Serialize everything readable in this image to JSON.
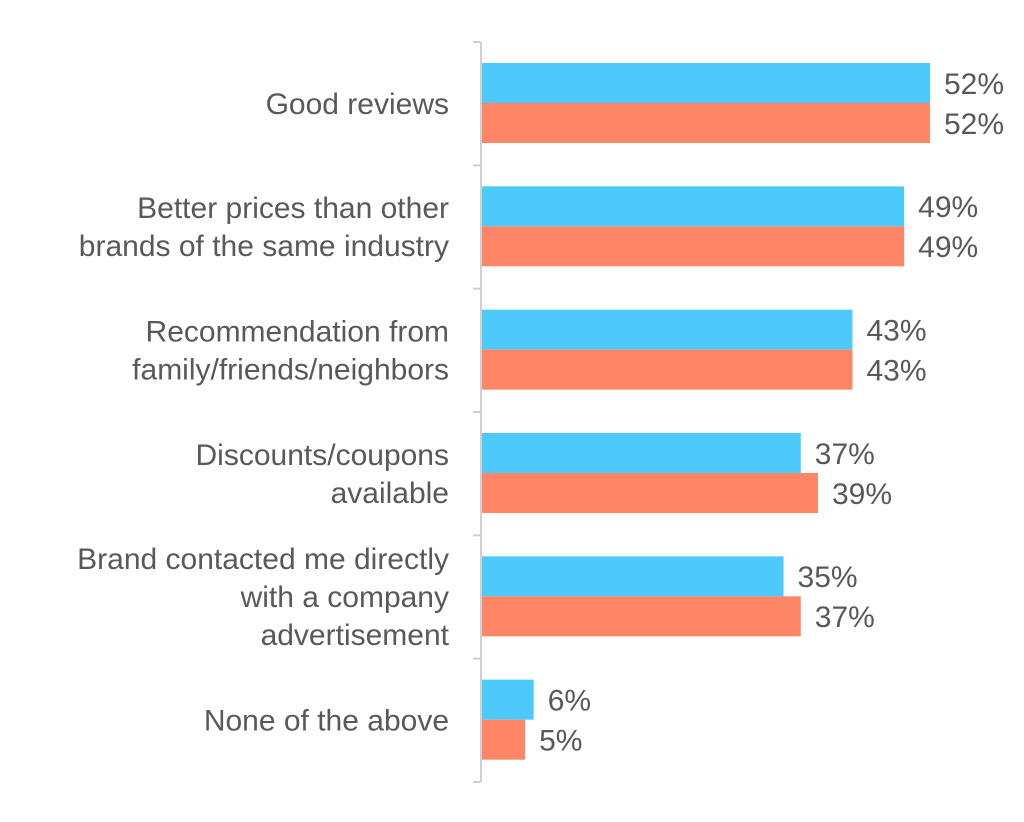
{
  "chart_data": {
    "type": "bar",
    "orientation": "horizontal",
    "categories": [
      [
        "Good reviews"
      ],
      [
        "Better prices than other",
        "brands of the same industry"
      ],
      [
        "Recommendation from",
        "family/friends/neighbors"
      ],
      [
        "Discounts/coupons",
        "available"
      ],
      [
        "Brand contacted me directly",
        "with a company",
        "advertisement"
      ],
      [
        "None of the above"
      ]
    ],
    "series": [
      {
        "color": "#4ec9fc",
        "values": [
          52,
          49,
          43,
          37,
          35,
          6
        ],
        "labels": [
          "52%",
          "49%",
          "43%",
          "37%",
          "35%",
          "6%"
        ]
      },
      {
        "color": "#ff8567",
        "values": [
          52,
          49,
          43,
          39,
          37,
          5
        ],
        "labels": [
          "52%",
          "49%",
          "43%",
          "39%",
          "37%",
          "5%"
        ]
      }
    ],
    "xlim": [
      0,
      52
    ],
    "grid": false,
    "legend": "none",
    "axis_color": "#d0d0d0"
  }
}
